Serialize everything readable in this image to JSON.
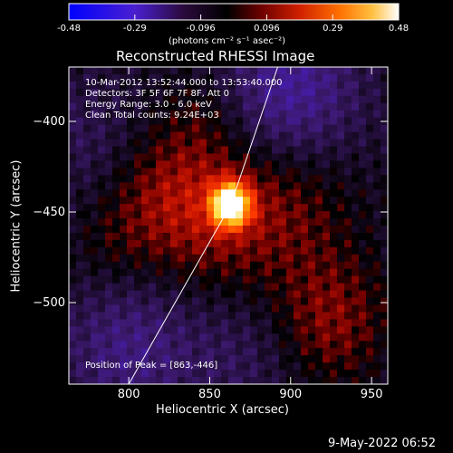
{
  "colors": {
    "background": "#000000",
    "text": "#ffffff",
    "colormap": [
      "#0000ff",
      "#5a1fc8",
      "#1a0a2a",
      "#000000",
      "#8b0000",
      "#ff3000",
      "#ffa000",
      "#ffff80",
      "#ffffff"
    ]
  },
  "colorbar": {
    "min": -0.48,
    "max": 0.48,
    "tick_labels": [
      "-0.48",
      "-0.29",
      "-0.096",
      "0.096",
      "0.29",
      "0.48"
    ],
    "unit_label": "(photons cm⁻² s⁻¹ asec⁻²)"
  },
  "chart_data": {
    "type": "heatmap",
    "title": "Reconstructed RHESSI Image",
    "xlabel": "Heliocentric X (arcsec)",
    "ylabel": "Heliocentric Y (arcsec)",
    "xlim": [
      763,
      960
    ],
    "ylim": [
      -545,
      -370
    ],
    "x_ticks": [
      800,
      850,
      900,
      950
    ],
    "y_ticks": [
      -400,
      -450,
      -500
    ],
    "x_tick_labels": [
      "800",
      "850",
      "900",
      "950"
    ],
    "y_tick_labels": [
      "−400",
      "−450",
      "−500"
    ],
    "annotations": [
      "10-Mar-2012 13:52:44.000 to 13:53:40.000",
      "Detectors: 3F 5F 6F 7F 8F, Att 0",
      "Energy Range: 3.0 - 6.0 keV",
      "Clean     Total counts: 9.24E+03"
    ],
    "peak_label": "Position of Peak = [863,-446]",
    "peak": [
      863,
      -446
    ],
    "peak_value": 0.48,
    "limb_line": [
      [
        800,
        -545
      ],
      [
        863,
        -446
      ],
      [
        892,
        -370
      ]
    ]
  },
  "footer": {
    "date": "9-May-2022 06:52"
  }
}
